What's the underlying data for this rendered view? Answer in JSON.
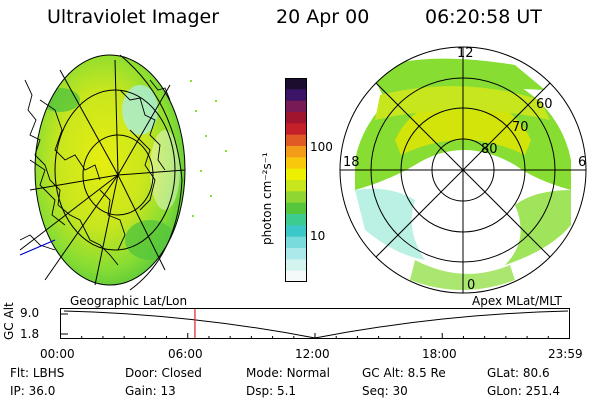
{
  "header": {
    "title": "Ultraviolet Imager",
    "date": "20 Apr 00",
    "time": "06:20:58 UT"
  },
  "colors": {
    "aurora_green": "#88dd33",
    "aurora_yellow": "#e6e600",
    "aurora_teal": "#33cccc",
    "aurora_pale": "#aaeedd",
    "marker_red": "#dd2222",
    "accent_blue": "#0000cc"
  },
  "left_panel": {
    "label": "Geographic Lat/Lon"
  },
  "right_panel": {
    "label": "Apex MLat/MLT",
    "mlt_labels": {
      "top": "12",
      "left": "18",
      "right": "6",
      "bottom": "0"
    },
    "lat_labels": [
      "60",
      "70",
      "80"
    ]
  },
  "colorbar": {
    "unit_label": "photon cm⁻²s⁻¹",
    "ticks": [
      "100",
      "10"
    ],
    "colors_top_to_bottom": [
      "#1a0d2e",
      "#3a1466",
      "#771a55",
      "#a0152d",
      "#c4202a",
      "#e05a23",
      "#f29c1a",
      "#f8c80d",
      "#eef000",
      "#c8e61e",
      "#90d632",
      "#55c63c",
      "#3ccc90",
      "#3cc8c8",
      "#78dcdc",
      "#aaeaea",
      "#d4f4f0",
      "#f4fafa"
    ]
  },
  "timeline": {
    "axis_label": "GC Alt",
    "y_ticks": [
      "9.0",
      "1.8"
    ],
    "x_ticks": [
      "00:00",
      "06:00",
      "12:00",
      "18:00",
      "23:59"
    ],
    "current_marker_hour": 6.35
  },
  "status": {
    "filter_label": "Flt:",
    "filter_value": "LBHS",
    "door_label": "Door:",
    "door_value": "Closed",
    "mode_label": "Mode:",
    "mode_value": "Normal",
    "gcalt_label": "GC Alt:",
    "gcalt_value": "8.5 Re",
    "glat_label": "GLat:",
    "glat_value": "80.6",
    "ip_label": "IP:",
    "ip_value": "36.0",
    "gain_label": "Gain:",
    "gain_value": "13",
    "dsp_label": "Dsp:",
    "dsp_value": "5.1",
    "seq_label": "Seq:",
    "seq_value": "30",
    "glon_label": "GLon:",
    "glon_value": "251.4"
  }
}
